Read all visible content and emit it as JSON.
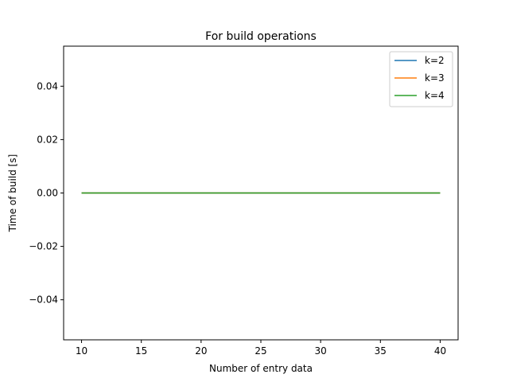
{
  "chart_data": {
    "type": "line",
    "title": "For build operations",
    "xlabel": "Number of entry data",
    "ylabel": "Time of build [s]",
    "x": [
      10,
      20,
      30,
      40
    ],
    "series": [
      {
        "name": "k=2",
        "color": "#1f77b4",
        "values": [
          0,
          0,
          0,
          0
        ]
      },
      {
        "name": "k=3",
        "color": "#ff7f0e",
        "values": [
          0,
          0,
          0,
          0
        ]
      },
      {
        "name": "k=4",
        "color": "#2ca02c",
        "values": [
          0,
          0,
          0,
          0
        ]
      }
    ],
    "xlim": [
      8.5,
      41.5
    ],
    "ylim": [
      -0.055,
      0.055
    ],
    "xticks": [
      10,
      15,
      20,
      25,
      30,
      35,
      40
    ],
    "xtick_labels": [
      "10",
      "15",
      "20",
      "25",
      "30",
      "35",
      "40"
    ],
    "yticks": [
      -0.04,
      -0.02,
      0.0,
      0.02,
      0.04
    ],
    "ytick_labels": [
      "−0.04",
      "−0.02",
      "0.00",
      "0.02",
      "0.04"
    ],
    "grid": false,
    "legend_position": "top-right"
  }
}
